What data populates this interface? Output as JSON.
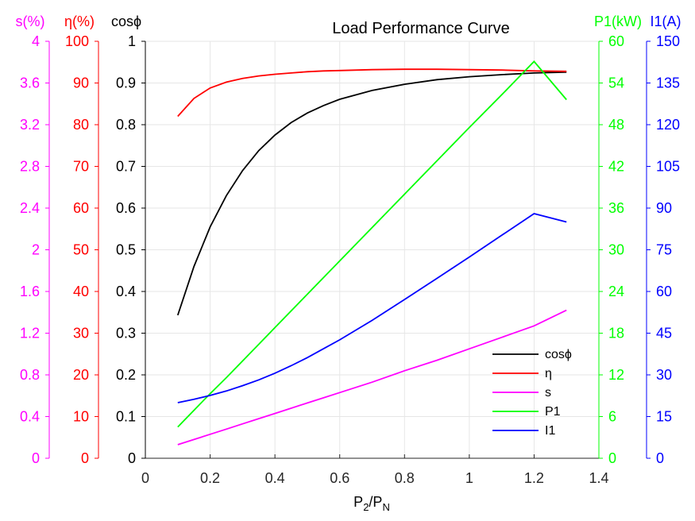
{
  "chart_data": {
    "type": "line",
    "title": "Load Performance Curve",
    "xlabel": "P2/PN",
    "xlabel_parts": {
      "main1": "P",
      "sub1": "2",
      "sep": "/P",
      "sub2": "N"
    },
    "xlim": [
      0,
      1.4
    ],
    "xticks": [
      "0",
      "0.2",
      "0.4",
      "0.6",
      "0.8",
      "1",
      "1.2",
      "1.4"
    ],
    "grid": true,
    "legend_position": "lower-right",
    "x": [
      0.1,
      0.15,
      0.2,
      0.25,
      0.3,
      0.35,
      0.4,
      0.45,
      0.5,
      0.55,
      0.6,
      0.7,
      0.8,
      0.9,
      1.0,
      1.1,
      1.2,
      1.3
    ],
    "axes": [
      {
        "id": "s",
        "label": "s(%)",
        "side": "left",
        "color": "#ff00ff",
        "lim": [
          0,
          4
        ],
        "ticks": [
          "0",
          "0.4",
          "0.8",
          "1.2",
          "1.6",
          "2",
          "2.4",
          "2.8",
          "3.2",
          "3.6",
          "4"
        ]
      },
      {
        "id": "eta",
        "label": "η(%)",
        "side": "left",
        "color": "#ff0000",
        "lim": [
          0,
          100
        ],
        "ticks": [
          "0",
          "10",
          "20",
          "30",
          "40",
          "50",
          "60",
          "70",
          "80",
          "90",
          "100"
        ]
      },
      {
        "id": "cos",
        "label": "cosϕ",
        "side": "left",
        "color": "#000000",
        "lim": [
          0,
          1
        ],
        "ticks": [
          "0",
          "0.1",
          "0.2",
          "0.3",
          "0.4",
          "0.5",
          "0.6",
          "0.7",
          "0.8",
          "0.9",
          "1"
        ]
      },
      {
        "id": "p1",
        "label": "P1(kW)",
        "side": "right",
        "color": "#00ff00",
        "lim": [
          0,
          60
        ],
        "ticks": [
          "0",
          "6",
          "12",
          "18",
          "24",
          "30",
          "36",
          "42",
          "48",
          "54",
          "60"
        ]
      },
      {
        "id": "i1",
        "label": "I1(A)",
        "side": "right",
        "color": "#0000ff",
        "lim": [
          0,
          150
        ],
        "ticks": [
          "0",
          "15",
          "30",
          "45",
          "60",
          "75",
          "90",
          "105",
          "120",
          "135",
          "150"
        ]
      }
    ],
    "series": [
      {
        "name": "cosϕ",
        "axis": "cos",
        "color": "#000000",
        "values": [
          0.343,
          0.46,
          0.555,
          0.63,
          0.69,
          0.738,
          0.775,
          0.805,
          0.828,
          0.846,
          0.861,
          0.882,
          0.897,
          0.908,
          0.915,
          0.92,
          0.924,
          0.926
        ]
      },
      {
        "name": "η",
        "axis": "eta",
        "color": "#ff0000",
        "values": [
          82.0,
          86.3,
          88.8,
          90.2,
          91.1,
          91.7,
          92.1,
          92.4,
          92.7,
          92.9,
          93.0,
          93.2,
          93.3,
          93.3,
          93.2,
          93.1,
          92.9,
          92.8
        ]
      },
      {
        "name": "s",
        "axis": "s",
        "color": "#ff00ff",
        "values": [
          0.13,
          0.18,
          0.23,
          0.28,
          0.33,
          0.38,
          0.43,
          0.48,
          0.53,
          0.58,
          0.63,
          0.73,
          0.84,
          0.94,
          1.05,
          1.16,
          1.27,
          1.42
        ]
      },
      {
        "name": "P1",
        "axis": "p1",
        "color": "#00ff00",
        "values": [
          4.5,
          6.9,
          9.3,
          11.6,
          14.0,
          16.4,
          18.8,
          21.2,
          23.6,
          26.0,
          28.4,
          33.2,
          38.0,
          42.8,
          47.6,
          52.3,
          57.1,
          51.6
        ]
      },
      {
        "name": "I1",
        "axis": "i1",
        "color": "#0000ff",
        "values": [
          20.0,
          21.2,
          22.6,
          24.2,
          26.1,
          28.2,
          30.6,
          33.3,
          36.2,
          39.4,
          42.6,
          49.6,
          57.1,
          64.7,
          72.4,
          80.2,
          88.0,
          85.0
        ]
      }
    ]
  }
}
